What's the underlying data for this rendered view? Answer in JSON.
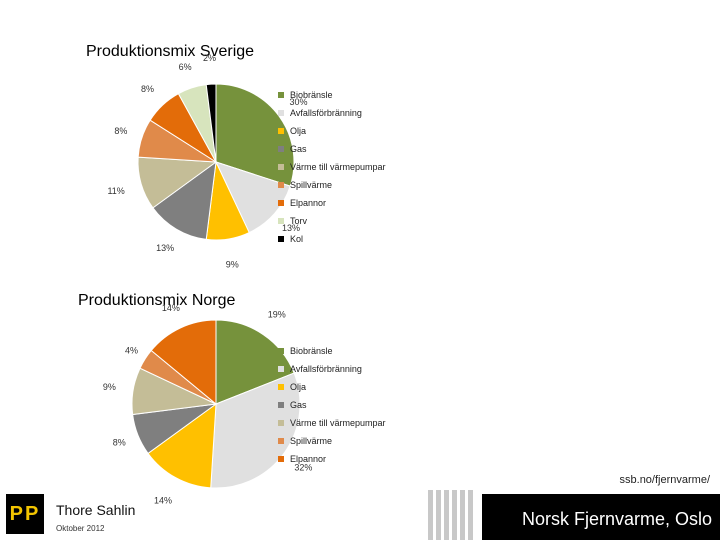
{
  "chart_data": [
    {
      "type": "pie",
      "title": "Produktionsmix Sverige",
      "slices": [
        {
          "label": "Biobränsle",
          "value": 30,
          "label_text": "30%",
          "color": "#76923c"
        },
        {
          "label": "Avfallsförbränning",
          "value": 13,
          "label_text": "13%",
          "color": "#e0e0e0"
        },
        {
          "label": "Olja",
          "value": 9,
          "label_text": "9%",
          "color": "#ffc000"
        },
        {
          "label": "Gas",
          "value": 13,
          "label_text": "13%",
          "color": "#7f7f7f"
        },
        {
          "label": "Värme till värmepumpar",
          "value": 11,
          "label_text": "11%",
          "color": "#c4bd97"
        },
        {
          "label": "Spillvärme",
          "value": 8,
          "label_text": "8%",
          "color": "#e08a4a"
        },
        {
          "label": "Elpannor",
          "value": 8,
          "label_text": "8%",
          "color": "#e36c09"
        },
        {
          "label": "Torv",
          "value": 6,
          "label_text": "6%",
          "color": "#d7e4bd"
        },
        {
          "label": "Kol",
          "value": 2,
          "label_text": "2%",
          "color": "#000000"
        }
      ],
      "legend": [
        "Biobränsle",
        "Avfallsförbränning",
        "Olja",
        "Gas",
        "Värme till värmepumpar",
        "Spillvärme",
        "Elpannor",
        "Torv",
        "Kol"
      ],
      "legend_position": "right"
    },
    {
      "type": "pie",
      "title": "Produktionsmix Norge",
      "slices": [
        {
          "label": "Biobränsle",
          "value": 19,
          "label_text": "19%",
          "color": "#76923c"
        },
        {
          "label": "Avfallsförbränning",
          "value": 32,
          "label_text": "32%",
          "color": "#e0e0e0"
        },
        {
          "label": "Olja",
          "value": 14,
          "label_text": "14%",
          "color": "#ffc000"
        },
        {
          "label": "Gas",
          "value": 8,
          "label_text": "8%",
          "color": "#7f7f7f"
        },
        {
          "label": "Värme till värmepumpar",
          "value": 9,
          "label_text": "9%",
          "color": "#c4bd97"
        },
        {
          "label": "Spillvärme",
          "value": 4,
          "label_text": "4%",
          "color": "#e08a4a"
        },
        {
          "label": "Elpannor",
          "value": 14,
          "label_text": "14%",
          "color": "#e36c09"
        }
      ],
      "legend": [
        "Biobränsle",
        "Avfallsförbränning",
        "Olja",
        "Gas",
        "Värme till värmepumpar",
        "Spillvärme",
        "Elpannor"
      ],
      "legend_position": "right"
    }
  ],
  "footer": {
    "logo_text": "PP",
    "presenter": "Thore Sahlin",
    "date": "Oktober 2012",
    "url": "ssb.no/fjernvarme/",
    "organization": "Norsk Fjernvarme, Oslo"
  }
}
